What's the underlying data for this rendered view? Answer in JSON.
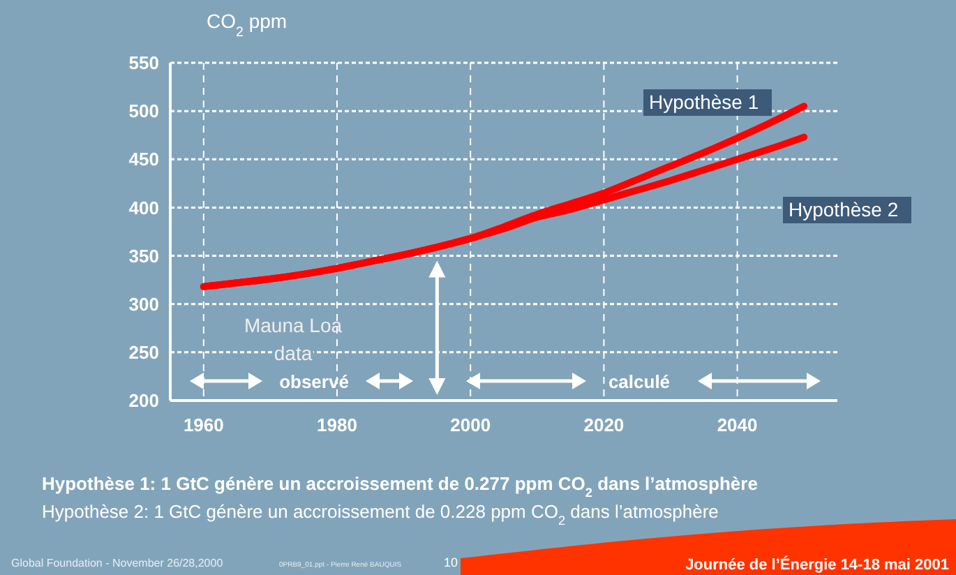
{
  "chart_data": {
    "type": "line",
    "ylabel": "CO$_{2}$ ppm",
    "x": [
      1960,
      1965,
      1970,
      1975,
      1980,
      1985,
      1990,
      1995,
      2000,
      2005,
      2010,
      2015,
      2020,
      2025,
      2030,
      2035,
      2040,
      2045,
      2050
    ],
    "series": [
      {
        "name": "Hypothèse 1",
        "color": "#ff0000",
        "values": [
          318,
          322,
          326,
          331,
          337,
          344,
          351,
          359,
          368,
          380,
          393,
          404,
          415,
          429,
          443,
          457,
          472,
          488,
          505
        ]
      },
      {
        "name": "Hypothèse 2",
        "color": "#ff0000",
        "values": [
          318,
          322,
          326,
          331,
          337,
          344,
          351,
          359,
          368,
          378,
          390,
          398,
          408,
          418,
          428,
          439,
          450,
          461,
          473
        ]
      }
    ],
    "xlim": [
      1955,
      2055
    ],
    "ylim": [
      200,
      550
    ],
    "xticks": [
      1960,
      1980,
      2000,
      2020,
      2040
    ],
    "yticks": [
      200,
      250,
      300,
      350,
      400,
      450,
      500,
      550
    ],
    "grid": true,
    "line_style": "solid",
    "marker": "none",
    "ref_lines": [
      {
        "axis": "x",
        "value": 1995
      }
    ],
    "annotations": [
      "Mauna Loa data",
      "observé",
      "calculé",
      "Hypothèse 1: 1 GtC génère un accroissement de 0.277 ppm CO$_{2}$ dans l’atmosphère",
      "Hypothèse 2: 1 GtC génère un accroissement de 0.228 ppm CO$_{2}$ dans l’atmosphère",
      "Global Foundation - November 26/28,2000",
      "0PRB9_01.ppt - Pierre René  BAUQUIS",
      "10",
      "Journée de l’Énergie 14-18 mai 2001"
    ]
  }
}
